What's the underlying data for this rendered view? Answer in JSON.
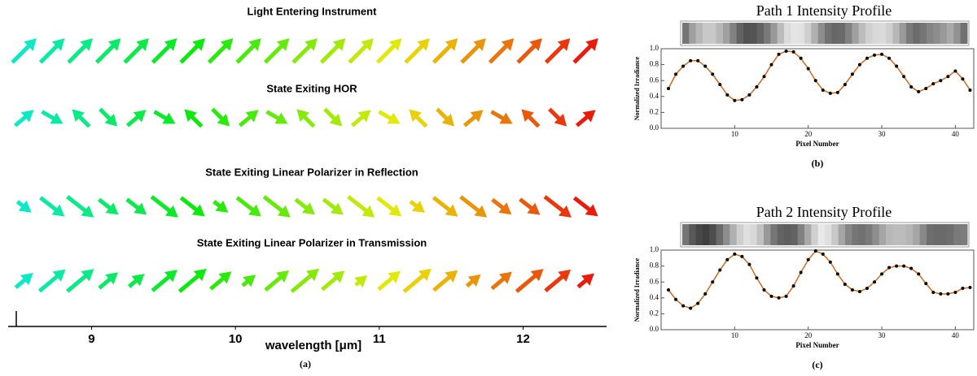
{
  "chart_data": [
    {
      "type": "quiver",
      "rows": [
        "Light Entering Instrument",
        "State Exiting HOR",
        "State Exiting Linear Polarizer in Reflection",
        "State Exiting Linear Polarizer in Transmission"
      ],
      "xlabel": "wavelength [μm]",
      "xlim": [
        8.42,
        12.58
      ],
      "xticks": [
        9,
        10,
        11,
        12
      ],
      "caption": "(a)"
    },
    {
      "type": "line",
      "title": "Path 1 Intensity Profile",
      "xlabel": "Pixel Number",
      "ylabel": "Normalized Irradiance",
      "caption": "(b)",
      "color": "#d2691e",
      "x": [
        1,
        2,
        3,
        4,
        5,
        6,
        7,
        8,
        9,
        10,
        11,
        12,
        13,
        14,
        15,
        16,
        17,
        18,
        19,
        20,
        21,
        22,
        23,
        24,
        25,
        26,
        27,
        28,
        29,
        30,
        31,
        32,
        33,
        34,
        35,
        36,
        37,
        38,
        39,
        40,
        41,
        42
      ],
      "values": [
        0.5,
        0.68,
        0.78,
        0.85,
        0.85,
        0.78,
        0.68,
        0.55,
        0.42,
        0.35,
        0.36,
        0.42,
        0.52,
        0.65,
        0.8,
        0.93,
        0.97,
        0.96,
        0.88,
        0.75,
        0.6,
        0.48,
        0.44,
        0.45,
        0.55,
        0.68,
        0.8,
        0.88,
        0.92,
        0.93,
        0.88,
        0.78,
        0.65,
        0.52,
        0.46,
        0.5,
        0.56,
        0.6,
        0.65,
        0.72,
        0.62,
        0.48
      ],
      "xlim": [
        0,
        42.5
      ],
      "xticks": [
        10,
        20,
        30,
        40
      ],
      "ylim": [
        0,
        1
      ],
      "yticks": [
        {
          "value": 0,
          "label": "0.0"
        },
        {
          "value": 0.2,
          "label": "0.2"
        },
        {
          "value": 0.4,
          "label": "0.4"
        },
        {
          "value": 0.6,
          "label": "0.6"
        },
        {
          "value": 0.8,
          "label": "0.8"
        },
        {
          "value": 1,
          "label": "1.0"
        }
      ]
    },
    {
      "type": "line",
      "title": "Path 2 Intensity Profile",
      "xlabel": "Pixel Number",
      "ylabel": "Normalized Irradiance",
      "caption": "(c)",
      "color": "#d2691e",
      "x": [
        1,
        2,
        3,
        4,
        5,
        6,
        7,
        8,
        9,
        10,
        11,
        12,
        13,
        14,
        15,
        16,
        17,
        18,
        19,
        20,
        21,
        22,
        23,
        24,
        25,
        26,
        27,
        28,
        29,
        30,
        31,
        32,
        33,
        34,
        35,
        36,
        37,
        38,
        39,
        40,
        41,
        42
      ],
      "values": [
        0.5,
        0.38,
        0.3,
        0.27,
        0.33,
        0.45,
        0.6,
        0.75,
        0.88,
        0.95,
        0.92,
        0.82,
        0.65,
        0.5,
        0.42,
        0.4,
        0.42,
        0.55,
        0.72,
        0.88,
        0.99,
        0.95,
        0.85,
        0.7,
        0.57,
        0.5,
        0.48,
        0.52,
        0.6,
        0.7,
        0.78,
        0.8,
        0.8,
        0.77,
        0.7,
        0.58,
        0.47,
        0.45,
        0.45,
        0.47,
        0.52,
        0.53
      ],
      "xlim": [
        0,
        42.5
      ],
      "xticks": [
        10,
        20,
        30,
        40
      ],
      "ylim": [
        0,
        1
      ],
      "yticks": [
        {
          "value": 0,
          "label": "0.0"
        },
        {
          "value": 0.2,
          "label": "0.2"
        },
        {
          "value": 0.4,
          "label": "0.4"
        },
        {
          "value": 0.6,
          "label": "0.6"
        },
        {
          "value": 0.8,
          "label": "0.8"
        },
        {
          "value": 1,
          "label": "1.0"
        }
      ]
    }
  ]
}
